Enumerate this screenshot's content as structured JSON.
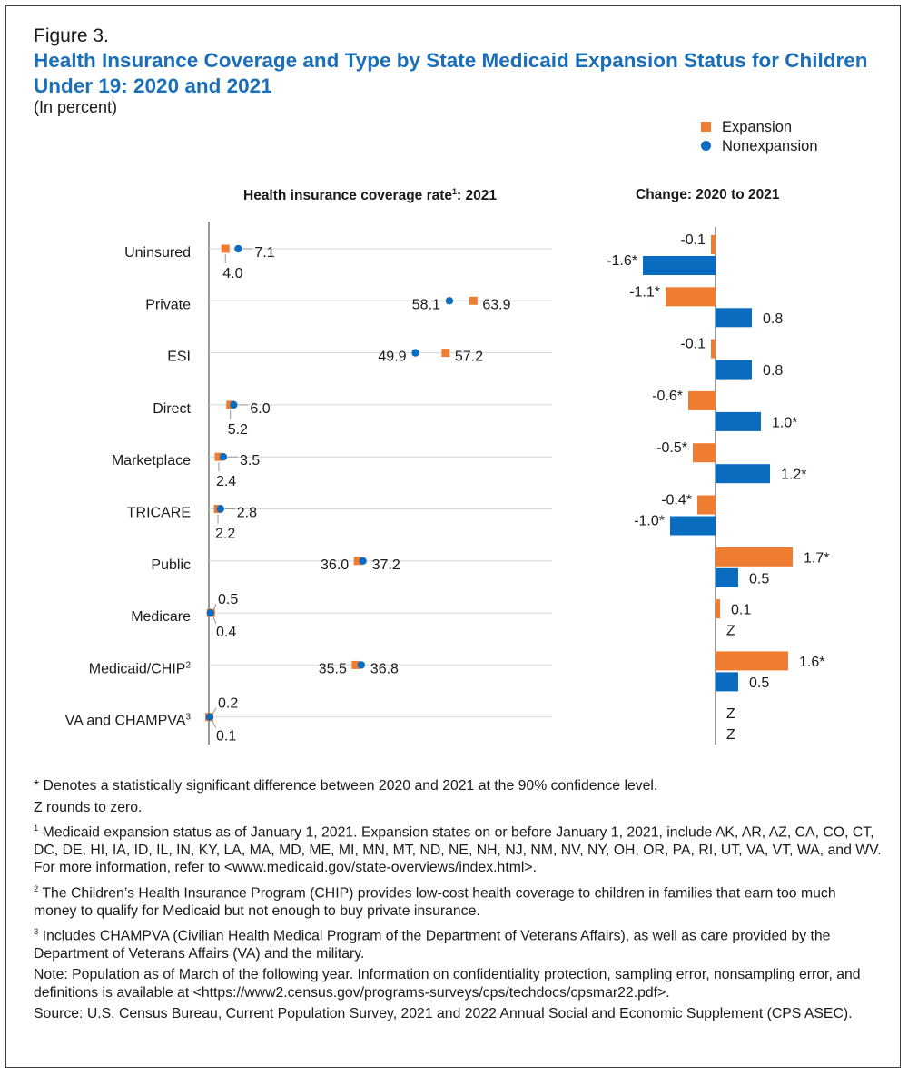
{
  "figure": {
    "label": "Figure 3.",
    "title": "Health Insurance Coverage and Type by State Medicaid Expansion Status for Children Under 19: 2020 and 2021",
    "subtitle": "(In percent)"
  },
  "legend": {
    "expansion": "Expansion",
    "nonexpansion": "Nonexpansion"
  },
  "colors": {
    "expansion": "#ef7d31",
    "nonexpansion": "#0a6cbf",
    "gridline": "#d6d6d6",
    "axis": "#555555"
  },
  "panels": {
    "left_title": "Health insurance coverage rate",
    "left_title_sup": "1",
    "left_title_suffix": ": 2021",
    "right_title": "Change: 2020 to 2021"
  },
  "chart_data": [
    {
      "type": "scatter",
      "title": "Health insurance coverage rate: 2021",
      "xlim": [
        0,
        100
      ],
      "categories": [
        "Uninsured",
        "Private",
        "ESI",
        "Direct",
        "Marketplace",
        "TRICARE",
        "Public",
        "Medicare",
        "Medicaid/CHIP",
        "VA and CHAMPVA"
      ],
      "category_sups": [
        "",
        "",
        "",
        "",
        "",
        "",
        "",
        "",
        "2",
        "3"
      ],
      "series": [
        {
          "name": "Expansion",
          "values": [
            4.0,
            63.9,
            57.2,
            5.2,
            2.4,
            2.2,
            36.0,
            0.5,
            35.5,
            0.1
          ],
          "labels": [
            "4.0",
            "63.9",
            "57.2",
            "5.2",
            "2.4",
            "2.2",
            "36.0",
            "0.5",
            "35.5",
            "0.1"
          ]
        },
        {
          "name": "Nonexpansion",
          "values": [
            7.1,
            58.1,
            49.9,
            6.0,
            3.5,
            2.8,
            37.2,
            0.4,
            36.8,
            0.2
          ],
          "labels": [
            "7.1",
            "58.1",
            "49.9",
            "6.0",
            "3.5",
            "2.8",
            "37.2",
            "0.4",
            "36.8",
            "0.2"
          ]
        }
      ]
    },
    {
      "type": "bar",
      "orientation": "horizontal",
      "title": "Change: 2020 to 2021",
      "categories": [
        "Uninsured",
        "Private",
        "ESI",
        "Direct",
        "Marketplace",
        "TRICARE",
        "Public",
        "Medicare",
        "Medicaid/CHIP",
        "VA and CHAMPVA"
      ],
      "series": [
        {
          "name": "Expansion",
          "values": [
            -0.1,
            -1.1,
            -0.1,
            -0.6,
            -0.5,
            -0.4,
            1.7,
            0.1,
            1.6,
            0
          ],
          "labels": [
            "-0.1",
            "-1.1*",
            "-0.1",
            "-0.6*",
            "-0.5*",
            "-0.4*",
            "1.7*",
            "0.1",
            "1.6*",
            "Z"
          ]
        },
        {
          "name": "Nonexpansion",
          "values": [
            -1.6,
            0.8,
            0.8,
            1.0,
            1.2,
            -1.0,
            0.5,
            0,
            0.5,
            0
          ],
          "labels": [
            "-1.6*",
            "0.8",
            "0.8",
            "1.0*",
            "1.2*",
            "-1.0*",
            "0.5",
            "Z",
            "0.5",
            "Z"
          ]
        }
      ]
    }
  ],
  "notes": {
    "significance": "* Denotes a statistically significant difference between 2020 and 2021 at the 90% confidence level.",
    "z_note": "Z rounds to zero.",
    "fn1_mark": "1",
    "fn1": " Medicaid expansion status as of January 1, 2021. Expansion states on or before January 1, 2021, include AK, AR, AZ, CA, CO, CT, DC, DE, HI, IA, ID, IL, IN, KY, LA, MA, MD, ME, MI, MN, MT, ND, NE, NH, NJ, NM, NV, NY, OH, OR, PA, RI, UT, VA, VT, WA, and WV. For more information, refer to <www.medicaid.gov/state-overviews/index.html>.",
    "fn2_mark": "2",
    "fn2": " The Children’s Health Insurance Program (CHIP) provides low-cost health coverage to children in families that earn too much money to qualify for Medicaid but not enough to buy private insurance.",
    "fn3_mark": "3",
    "fn3": " Includes CHAMPVA (Civilian Health Medical Program of the Department of Veterans Affairs), as well as care provided by the Department of Veterans Affairs (VA) and the military.",
    "population": "Note: Population as of March of the following year. Information on confidentiality protection, sampling error, nonsampling error, and definitions is available at <https://www2.census.gov/programs-surveys/cps/techdocs/cpsmar22.pdf>.",
    "source": "Source: U.S. Census Bureau, Current Population Survey, 2021 and 2022 Annual Social and Economic Supplement (CPS ASEC)."
  }
}
